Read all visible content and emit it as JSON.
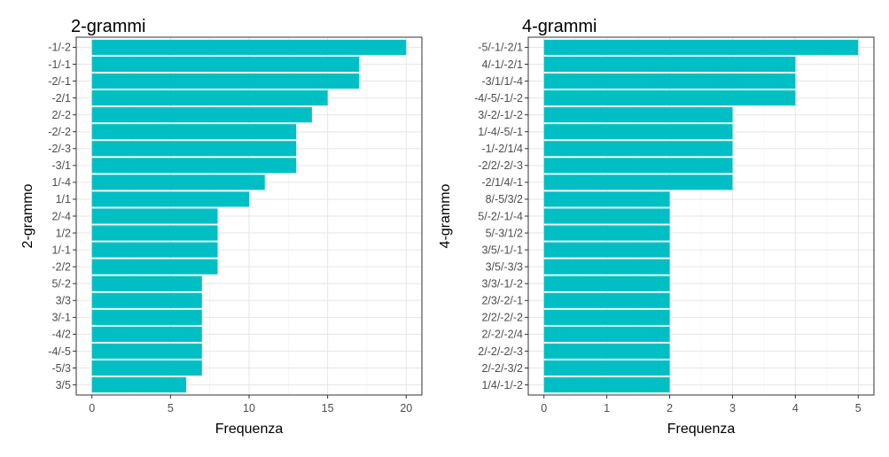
{
  "chart_data": [
    {
      "type": "bar",
      "orientation": "horizontal",
      "title": "2-grammi",
      "xlabel": "Frequenza",
      "ylabel": "2-grammo",
      "xlim": [
        0,
        20
      ],
      "xticks": [
        0,
        5,
        10,
        15,
        20
      ],
      "grid": true,
      "bar_color": "#00BFC4",
      "categories": [
        "-1/-2",
        "-1/-1",
        "-2/-1",
        "-2/1",
        "2/-2",
        "-2/-2",
        "-2/-3",
        "-3/1",
        "1/-4",
        "1/1",
        "2/-4",
        "1/2",
        "1/-1",
        "-2/2",
        "5/-2",
        "3/3",
        "3/-1",
        "-4/2",
        "-4/-5",
        "-5/3",
        "3/5"
      ],
      "values": [
        20,
        17,
        17,
        15,
        14,
        13,
        13,
        13,
        11,
        10,
        8,
        8,
        8,
        8,
        7,
        7,
        7,
        7,
        7,
        7,
        6
      ]
    },
    {
      "type": "bar",
      "orientation": "horizontal",
      "title": "4-grammi",
      "xlabel": "Frequenza",
      "ylabel": "4-grammo",
      "xlim": [
        0,
        5
      ],
      "xticks": [
        0,
        1,
        2,
        3,
        4,
        5
      ],
      "grid": true,
      "bar_color": "#00BFC4",
      "categories": [
        "-5/-1/-2/1",
        "4/-1/-2/1",
        "-3/1/1/-4",
        "-4/-5/-1/-2",
        "3/-2/-1/-2",
        "1/-4/-5/-1",
        "-1/-2/1/4",
        "-2/2/-2/-3",
        "-2/1/4/-1",
        "8/-5/3/2",
        "5/-2/-1/-4",
        "5/-3/1/2",
        "3/5/-1/-1",
        "3/5/-3/3",
        "3/3/-1/-2",
        "2/3/-2/-1",
        "2/2/-2/-2",
        "2/-2/-2/4",
        "2/-2/-2/-3",
        "2/-2/-3/2",
        "1/4/-1/-2"
      ],
      "values": [
        5,
        4,
        4,
        4,
        3,
        3,
        3,
        3,
        3,
        2,
        2,
        2,
        2,
        2,
        2,
        2,
        2,
        2,
        2,
        2,
        2
      ]
    }
  ]
}
